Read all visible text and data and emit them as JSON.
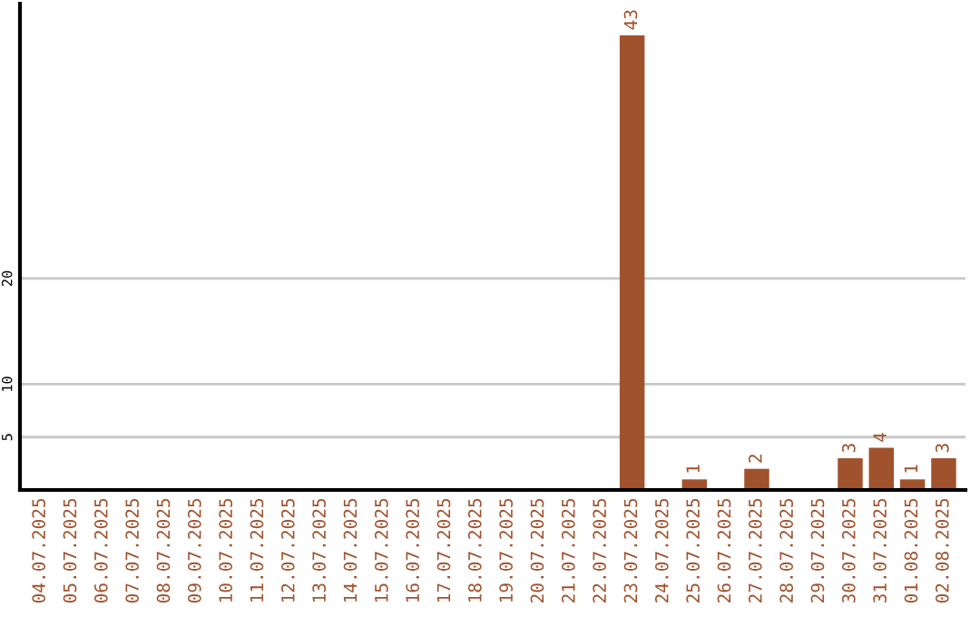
{
  "chart_data": {
    "type": "bar",
    "categories": [
      "04.07.2025",
      "05.07.2025",
      "06.07.2025",
      "07.07.2025",
      "08.07.2025",
      "09.07.2025",
      "10.07.2025",
      "11.07.2025",
      "12.07.2025",
      "13.07.2025",
      "14.07.2025",
      "15.07.2025",
      "16.07.2025",
      "17.07.2025",
      "18.07.2025",
      "19.07.2025",
      "20.07.2025",
      "21.07.2025",
      "22.07.2025",
      "23.07.2025",
      "24.07.2025",
      "25.07.2025",
      "26.07.2025",
      "27.07.2025",
      "28.07.2025",
      "29.07.2025",
      "30.07.2025",
      "31.07.2025",
      "01.08.2025",
      "02.08.2025"
    ],
    "values": [
      0,
      0,
      0,
      0,
      0,
      0,
      0,
      0,
      0,
      0,
      0,
      0,
      0,
      0,
      0,
      0,
      0,
      0,
      0,
      43,
      0,
      1,
      0,
      2,
      0,
      0,
      3,
      4,
      1,
      3
    ],
    "value_labels": [
      null,
      null,
      null,
      null,
      null,
      null,
      null,
      null,
      null,
      null,
      null,
      null,
      null,
      null,
      null,
      null,
      null,
      null,
      null,
      "43",
      null,
      "1",
      null,
      "2",
      null,
      null,
      "3",
      "4",
      "1",
      "3"
    ],
    "color": "#a0522d",
    "ylim": [
      0,
      46
    ],
    "yticks": [
      5,
      10,
      20
    ],
    "grid": "y"
  }
}
